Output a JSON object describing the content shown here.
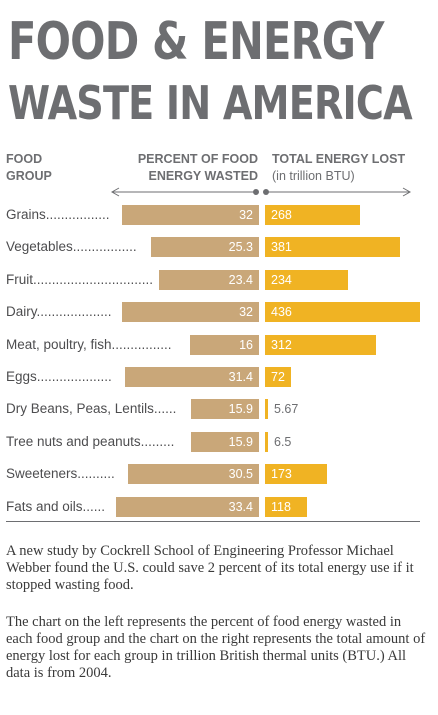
{
  "title": {
    "line1": "FOOD & ENERGY",
    "line2": "WASTE IN AMERICA"
  },
  "headers": {
    "food_group": [
      "FOOD",
      "GROUP"
    ],
    "percent": [
      "PERCENT OF FOOD",
      "ENERGY WASTED"
    ],
    "energy": [
      "TOTAL ENERGY LOST",
      "(in trillion BTU)"
    ]
  },
  "colors": {
    "percent_bar": "#c9a779",
    "energy_bar": "#f0b323",
    "title": "#6d6e71"
  },
  "chart_data": {
    "type": "bar",
    "categories": [
      "Grains.................",
      "Vegetables.................",
      "Fruit................................",
      "Dairy....................",
      "Meat, poultry, fish................",
      "Eggs....................",
      "Dry Beans, Peas, Lentils......",
      "Tree nuts and peanuts.........",
      "Sweeteners..........",
      "Fats and oils......"
    ],
    "series": [
      {
        "values": [
          32,
          25.3,
          23.4,
          32,
          16,
          31.4,
          15.9,
          15.9,
          30.5,
          33.4
        ],
        "labels": [
          "32",
          "25.3",
          "23.4",
          "32",
          "16",
          "31.4",
          "15.9",
          "15.9",
          "30.5",
          "33.4"
        ]
      },
      {
        "values": [
          268,
          381,
          234,
          436,
          312,
          72,
          5.67,
          6.5,
          173,
          118
        ],
        "labels": [
          "268",
          "381",
          "234",
          "436",
          "312",
          "72",
          "5.67",
          "6.5",
          "173",
          "118"
        ]
      }
    ]
  },
  "description": {
    "paragraph1": "A new study by Cockrell School of Engineering Professor Michael Webber found the U.S. could save 2 percent of its total energy use if it stopped wasting food.",
    "paragraph2": "The chart on the left represents the percent of food energy wasted in each food group and the chart on the right represents the total amount of energy lost for each group in trillion British thermal units (BTU.) All data is from 2004."
  }
}
